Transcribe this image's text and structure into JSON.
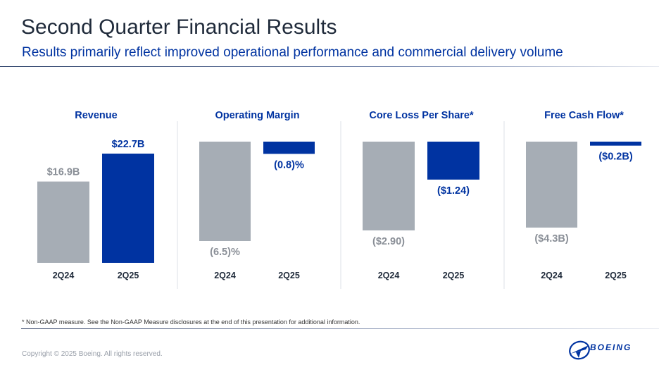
{
  "title": "Second Quarter Financial Results",
  "subtitle": "Results primarily reflect improved operational performance and commercial delivery volume",
  "footnote": "* Non-GAAP measure. See the Non-GAAP Measure disclosures at the end of this presentation for additional information.",
  "copyright": "Copyright © 2025 Boeing. All rights reserved.",
  "logo": {
    "name": "boeing-logo",
    "text": "BOEING"
  },
  "colors": {
    "prior": "#a6adb5",
    "current": "#0033a1",
    "prior_label": "#8a8f97",
    "current_label": "#0033a1",
    "heading": "#0033a1"
  },
  "chart_data": [
    {
      "type": "bar",
      "title": "Revenue",
      "categories": [
        "2Q24",
        "2Q25"
      ],
      "values": [
        16.9,
        22.7
      ],
      "labels": [
        "$16.9B",
        "$22.7B"
      ],
      "unit": "$B"
    },
    {
      "type": "bar",
      "title": "Operating Margin",
      "categories": [
        "2Q24",
        "2Q25"
      ],
      "values": [
        -6.5,
        -0.8
      ],
      "labels": [
        "(6.5)%",
        "(0.8)%"
      ],
      "unit": "%"
    },
    {
      "type": "bar",
      "title": "Core Loss Per Share*",
      "categories": [
        "2Q24",
        "2Q25"
      ],
      "values": [
        -2.9,
        -1.24
      ],
      "labels": [
        "($2.90)",
        "($1.24)"
      ],
      "unit": "$"
    },
    {
      "type": "bar",
      "title": "Free Cash Flow*",
      "categories": [
        "2Q24",
        "2Q25"
      ],
      "values": [
        -4.3,
        -0.2
      ],
      "labels": [
        "($4.3B)",
        "($0.2B)"
      ],
      "unit": "$B"
    }
  ]
}
